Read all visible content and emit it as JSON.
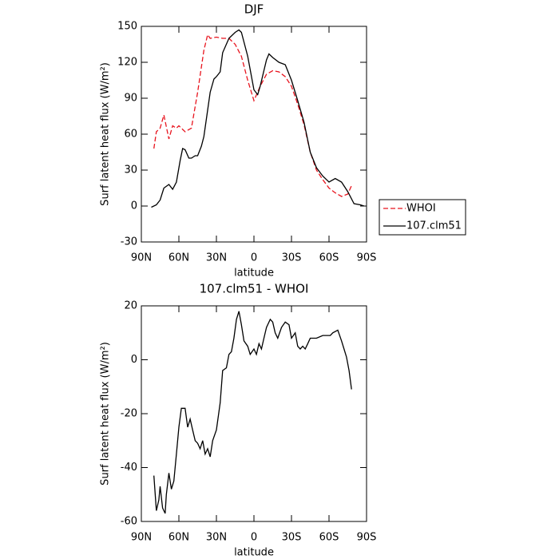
{
  "chart_data": [
    {
      "type": "line",
      "title": "DJF",
      "xlabel": "latitude",
      "ylabel": "Surf latent heat flux (W/m²)",
      "xlim": [
        90,
        -90
      ],
      "ylim": [
        -30,
        150
      ],
      "xticks": [
        {
          "value": 90,
          "label": "90N"
        },
        {
          "value": 60,
          "label": "60N"
        },
        {
          "value": 30,
          "label": "30N"
        },
        0,
        {
          "value": -30,
          "label": "30S"
        },
        {
          "value": -60,
          "label": "60S"
        },
        {
          "value": -90,
          "label": "90S"
        }
      ],
      "yticks": [
        -30,
        0,
        30,
        60,
        90,
        120,
        150
      ],
      "grid": false,
      "legend": "right",
      "series": [
        {
          "name": "WHOI",
          "color": "#e8141e",
          "dash": "dashed",
          "x": [
            80,
            78,
            75,
            72,
            68,
            65,
            62,
            60,
            55,
            50,
            45,
            40,
            37,
            35,
            30,
            25,
            20,
            15,
            10,
            5,
            0,
            -5,
            -10,
            -15,
            -20,
            -25,
            -30,
            -35,
            -40,
            -45,
            -50,
            -55,
            -60,
            -65,
            -70,
            -75,
            -78
          ],
          "values": [
            48,
            62,
            65,
            76,
            56,
            67,
            65,
            67,
            62,
            65,
            95,
            130,
            143,
            140,
            141,
            140,
            140,
            135,
            125,
            105,
            88,
            100,
            110,
            113,
            112,
            108,
            100,
            85,
            68,
            45,
            30,
            22,
            15,
            11,
            8,
            10,
            17
          ]
        },
        {
          "name": "107.clm51",
          "color": "#000000",
          "dash": "solid",
          "x": [
            82,
            78,
            75,
            72,
            68,
            65,
            62,
            59,
            57,
            55,
            52,
            50,
            47,
            45,
            42,
            40,
            37,
            35,
            32,
            30,
            27,
            25,
            20,
            15,
            12,
            10,
            5,
            0,
            -3,
            -5,
            -10,
            -12,
            -15,
            -20,
            -25,
            -30,
            -35,
            -40,
            -45,
            -50,
            -55,
            -60,
            -65,
            -70,
            -75,
            -80,
            -85,
            -88
          ],
          "values": [
            -1,
            1,
            5,
            15,
            18,
            14,
            20,
            38,
            48,
            47,
            40,
            40,
            42,
            42,
            50,
            58,
            80,
            95,
            106,
            108,
            112,
            128,
            140,
            145,
            147,
            145,
            125,
            97,
            93,
            100,
            122,
            127,
            124,
            120,
            118,
            105,
            88,
            70,
            45,
            32,
            25,
            20,
            23,
            20,
            12,
            2,
            1,
            0
          ]
        }
      ]
    },
    {
      "type": "line",
      "title": "107.clm51 - WHOI",
      "xlabel": "latitude",
      "ylabel": "Surf latent heat flux (W/m²)",
      "xlim": [
        90,
        -90
      ],
      "ylim": [
        -60,
        20
      ],
      "xticks": [
        {
          "value": 90,
          "label": "90N"
        },
        {
          "value": 60,
          "label": "60N"
        },
        {
          "value": 30,
          "label": "30N"
        },
        0,
        {
          "value": -30,
          "label": "30S"
        },
        {
          "value": -60,
          "label": "60S"
        },
        {
          "value": -90,
          "label": "90S"
        }
      ],
      "yticks": [
        -60,
        -40,
        -20,
        0,
        20
      ],
      "grid": false,
      "series": [
        {
          "color": "#000000",
          "dash": "solid",
          "x": [
            80,
            78,
            76,
            75,
            73,
            71,
            70,
            68,
            66,
            64,
            62,
            60,
            58,
            55,
            53,
            51,
            49,
            47,
            45,
            43,
            41,
            39,
            37,
            35,
            33,
            30,
            27,
            25,
            22,
            20,
            18,
            16,
            14,
            12,
            10,
            8,
            5,
            3,
            0,
            -2,
            -4,
            -6,
            -8,
            -10,
            -13,
            -15,
            -17,
            -19,
            -22,
            -25,
            -28,
            -30,
            -33,
            -35,
            -37,
            -39,
            -41,
            -43,
            -45,
            -50,
            -55,
            -58,
            -61,
            -63,
            -67,
            -70,
            -72,
            -74,
            -76,
            -78
          ],
          "values": [
            -43,
            -56,
            -52,
            -47,
            -55,
            -57,
            -50,
            -42,
            -48,
            -45,
            -35,
            -25,
            -18,
            -18,
            -25,
            -22,
            -26,
            -30,
            -31,
            -33,
            -30,
            -35,
            -33,
            -36,
            -30,
            -26,
            -16,
            -4,
            -3,
            2,
            3,
            8,
            15,
            18,
            13,
            7,
            5,
            2,
            4,
            2,
            6,
            4,
            8,
            12,
            15,
            14,
            10,
            8,
            12,
            14,
            13,
            8,
            10,
            5,
            4,
            5,
            4,
            6,
            8,
            8,
            9,
            9,
            9,
            10,
            11,
            7,
            4,
            1,
            -4,
            -11
          ]
        }
      ]
    }
  ]
}
